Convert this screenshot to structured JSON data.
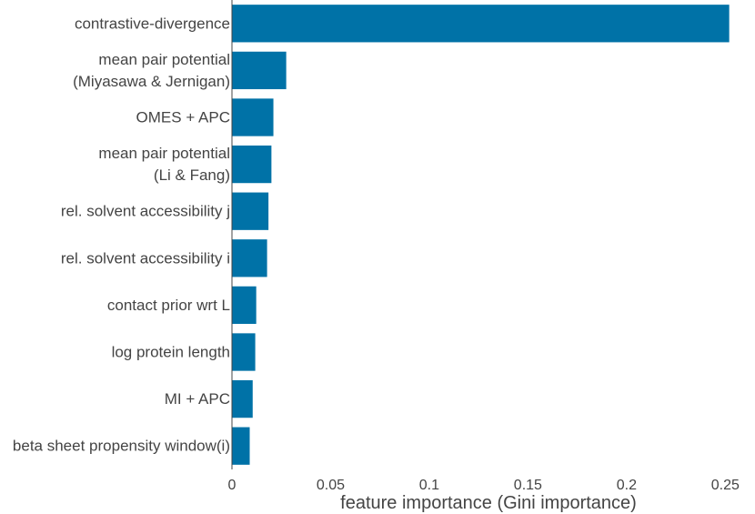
{
  "chart_data": {
    "type": "bar",
    "orientation": "horizontal",
    "categories": [
      [
        "contrastive-divergence"
      ],
      [
        "mean pair potential",
        "(Miyasawa & Jernigan)"
      ],
      [
        "OMES + APC"
      ],
      [
        "mean pair potential",
        "(Li & Fang)"
      ],
      [
        "rel. solvent accessibility j"
      ],
      [
        "rel. solvent accessibility i"
      ],
      [
        "contact prior wrt L"
      ],
      [
        "log protein length"
      ],
      [
        "MI + APC"
      ],
      [
        "beta sheet propensity window(i)"
      ]
    ],
    "values": [
      0.252,
      0.0275,
      0.021,
      0.02,
      0.0185,
      0.0178,
      0.0123,
      0.0118,
      0.0105,
      0.009
    ],
    "xlabel": "feature importance (Gini importance)",
    "ylabel": "",
    "title": "",
    "xlim": [
      0,
      0.26
    ],
    "xticks": [
      0,
      0.05,
      0.1,
      0.15,
      0.2,
      0.25
    ],
    "xtick_labels": [
      "0",
      "0.05",
      "0.1",
      "0.15",
      "0.2",
      "0.25"
    ],
    "bar_color": "#0072a7",
    "grid": false,
    "legend": "none"
  }
}
